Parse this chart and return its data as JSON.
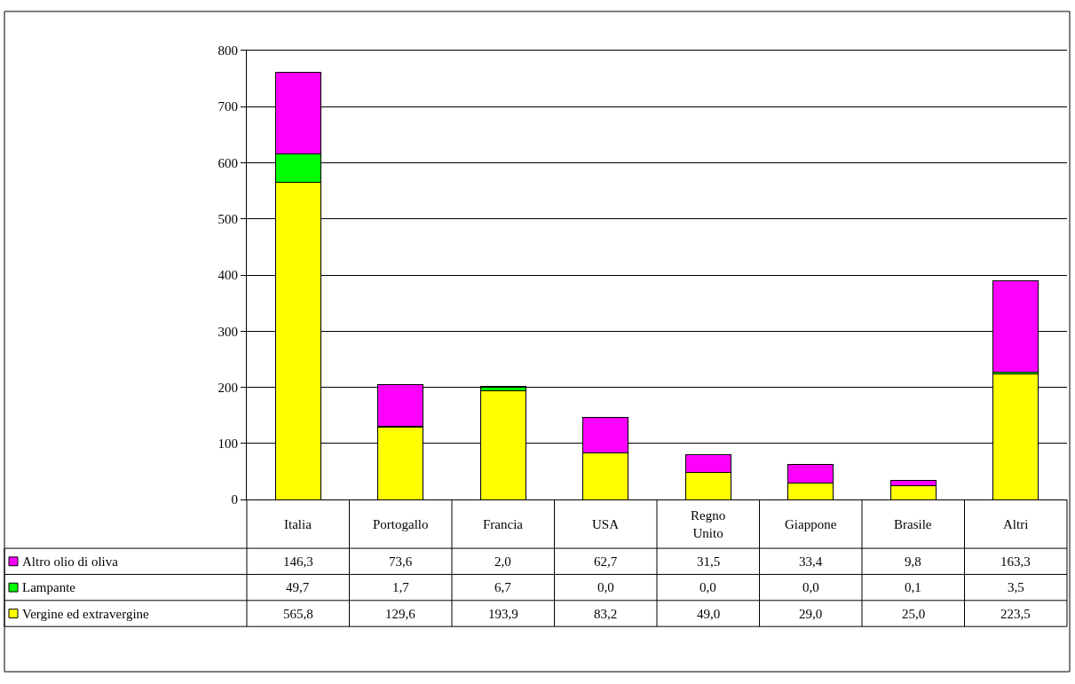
{
  "chart_data": {
    "type": "bar",
    "stacked": true,
    "categories": [
      "Italia",
      "Portogallo",
      "Francia",
      "USA",
      "Regno Unito",
      "Giappone",
      "Brasile",
      "Altri"
    ],
    "series": [
      {
        "name": "Vergine ed extravergine",
        "color": "#ffff00",
        "values": [
          565.8,
          129.6,
          193.9,
          83.2,
          49.0,
          29.0,
          25.0,
          223.5
        ],
        "value_labels": [
          "565,8",
          "129,6",
          "193,9",
          "83,2",
          "49,0",
          "29,0",
          "25,0",
          "223,5"
        ]
      },
      {
        "name": "Lampante",
        "color": "#00ff00",
        "values": [
          49.7,
          1.7,
          6.7,
          0.0,
          0.0,
          0.0,
          0.1,
          3.5
        ],
        "value_labels": [
          "49,7",
          "1,7",
          "6,7",
          "0,0",
          "0,0",
          "0,0",
          "0,1",
          "3,5"
        ]
      },
      {
        "name": "Altro olio di oliva",
        "color": "#ff00ff",
        "values": [
          146.3,
          73.6,
          2.0,
          62.7,
          31.5,
          33.4,
          9.8,
          163.3
        ],
        "value_labels": [
          "146,3",
          "73,6",
          "2,0",
          "62,7",
          "31,5",
          "33,4",
          "9,8",
          "163,3"
        ]
      }
    ],
    "ylim": [
      0,
      800
    ],
    "yticks": [
      0,
      100,
      200,
      300,
      400,
      500,
      600,
      700,
      800
    ],
    "grid": "y",
    "legend": "bottom"
  }
}
